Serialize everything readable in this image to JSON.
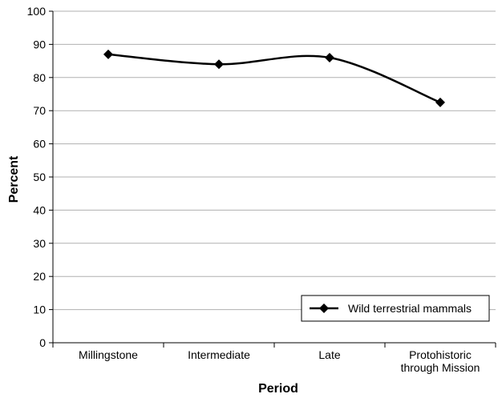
{
  "chart_data": {
    "type": "line",
    "title": "",
    "xlabel": "Period",
    "ylabel": "Percent",
    "categories": [
      "Millingstone",
      "Intermediate",
      "Late",
      "Protohistoric through Mission"
    ],
    "category_lines": [
      [
        "Millingstone"
      ],
      [
        "Intermediate"
      ],
      [
        "Late"
      ],
      [
        "Protohistoric",
        "through Mission"
      ]
    ],
    "series": [
      {
        "name": "Wild terrestrial mammals",
        "values": [
          87,
          84,
          86,
          72.5
        ],
        "color": "#000000",
        "marker": "diamond",
        "smooth": true
      }
    ],
    "ylim": [
      0,
      100
    ],
    "yticks": [
      0,
      10,
      20,
      30,
      40,
      50,
      60,
      70,
      80,
      90,
      100
    ],
    "grid": true,
    "legend_position": "bottom-right"
  }
}
